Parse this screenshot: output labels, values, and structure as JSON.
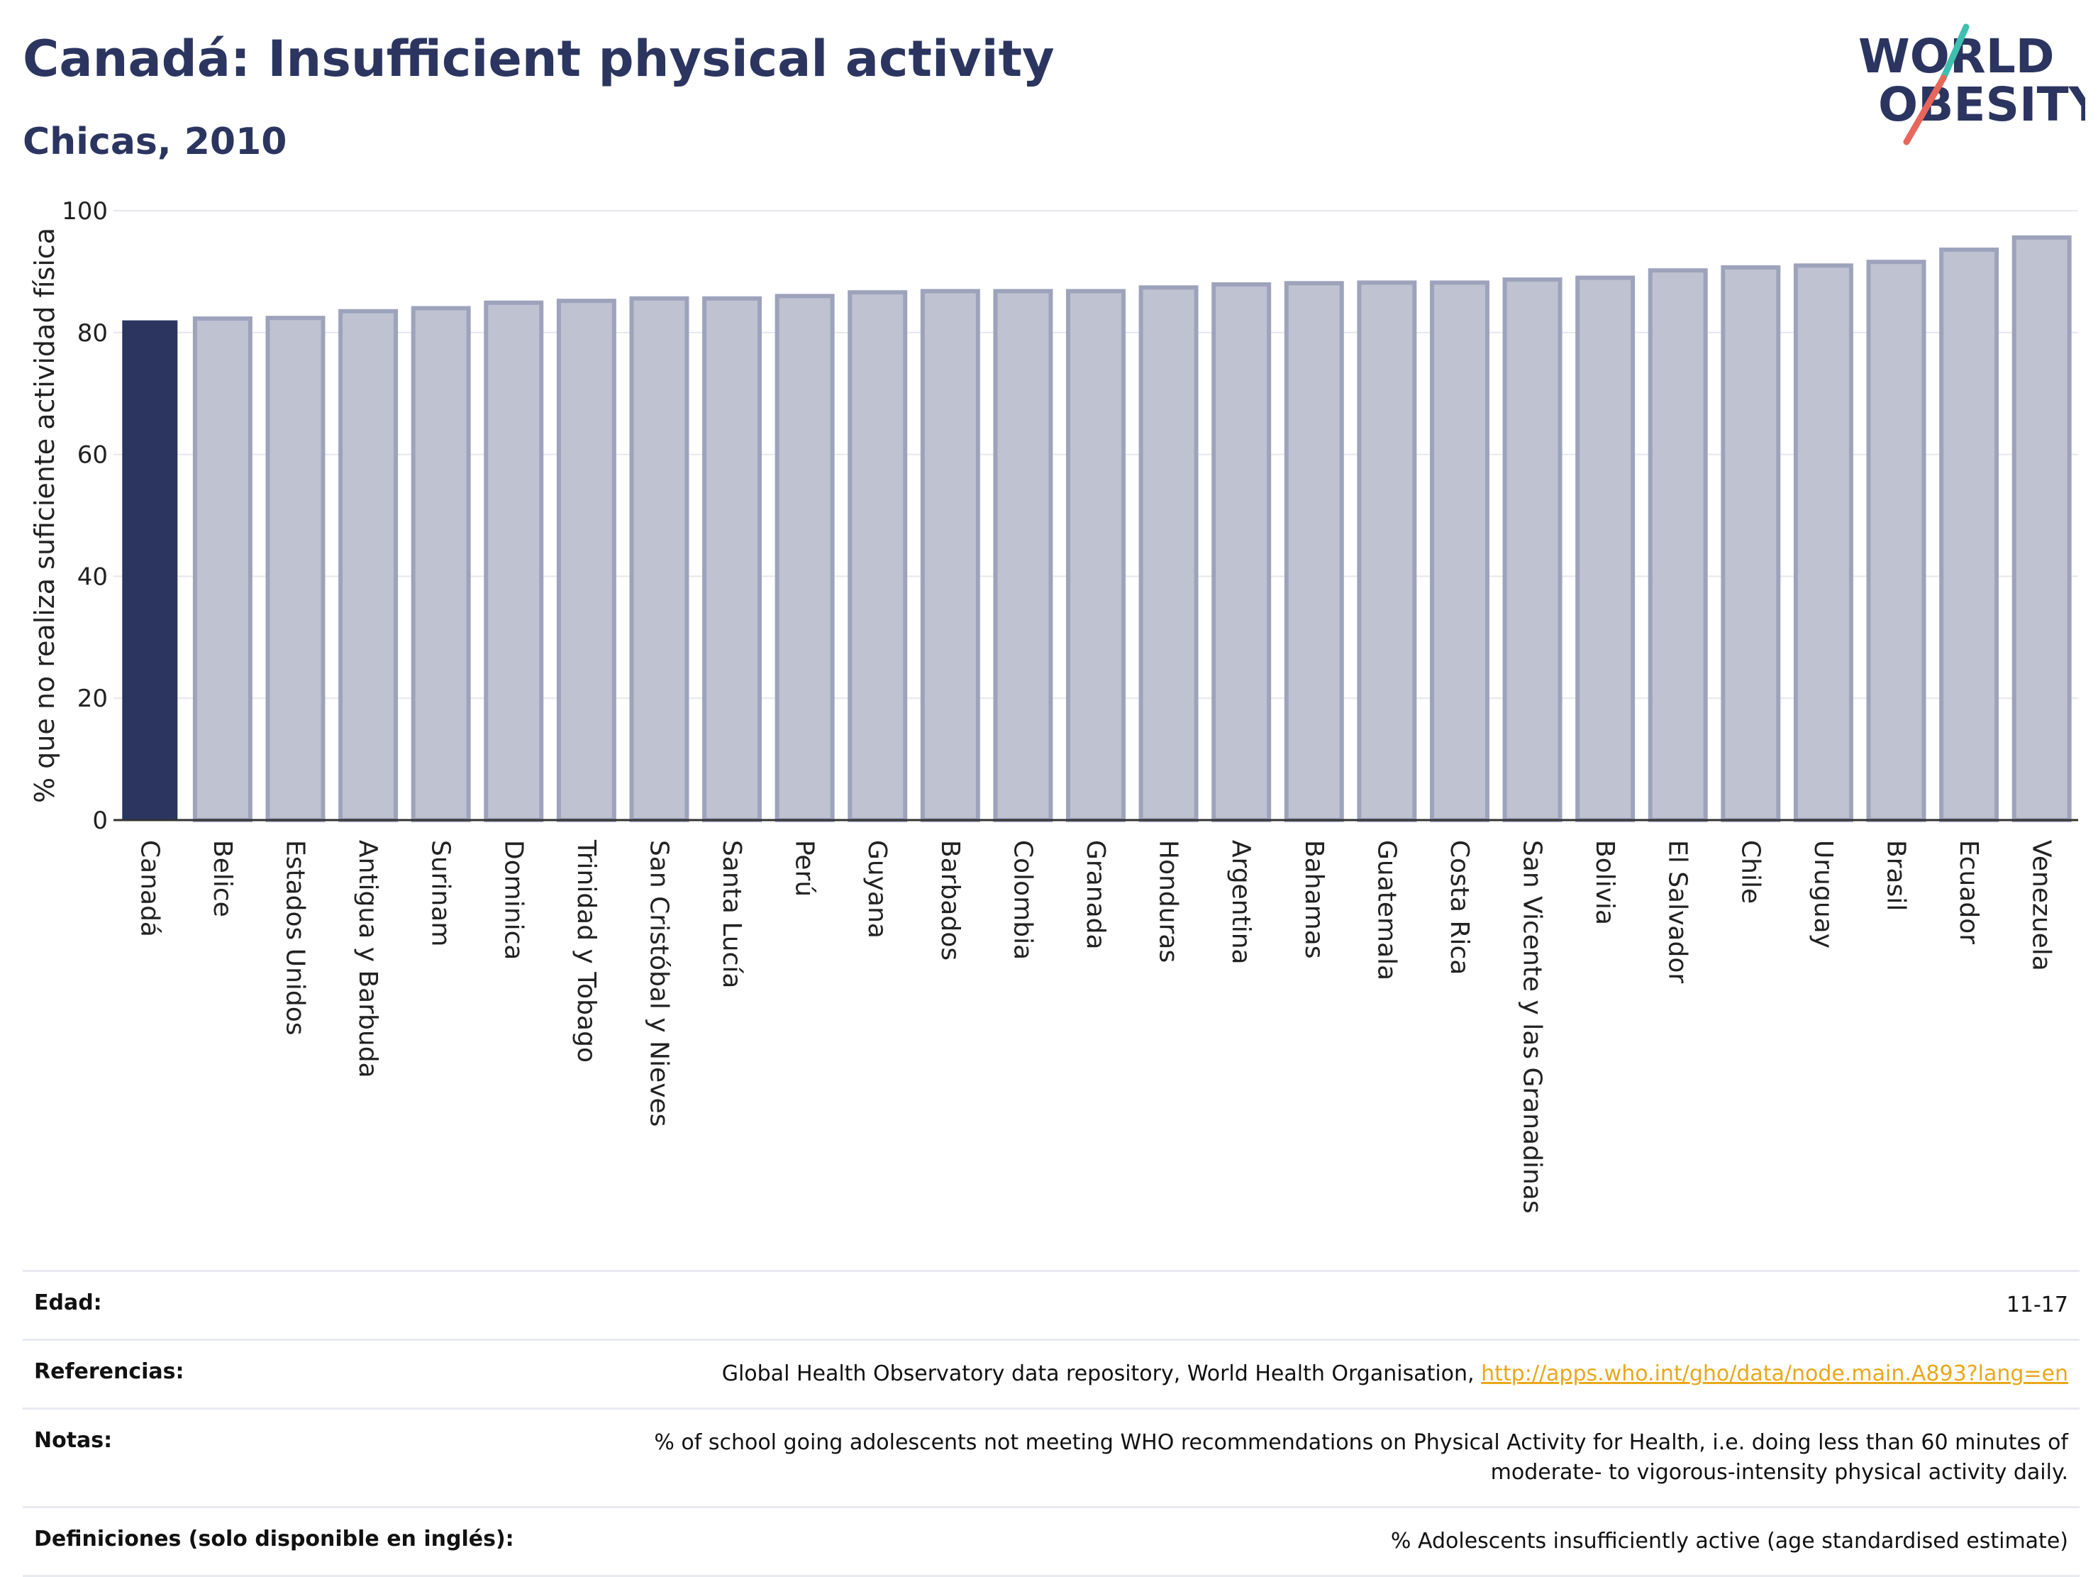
{
  "header": {
    "title": "Canadá: Insufficient physical activity",
    "subtitle": "Chicas, 2010"
  },
  "logo": {
    "line1": "WORLD",
    "line2": "OBESITY",
    "accent_teal": "#3fbfb0",
    "accent_coral": "#e8665a"
  },
  "colors": {
    "highlight_bar": "#2b3560",
    "other_bar_fill": "#bfc2d0",
    "other_bar_stroke": "#9ea3bc",
    "text": "#2b3560"
  },
  "chart_data": {
    "type": "bar",
    "ylabel": "% que no realiza suficiente actividad física",
    "ylim": [
      0,
      100
    ],
    "yticks": [
      0,
      20,
      40,
      60,
      80,
      100
    ],
    "grid": true,
    "highlight": "Canadá",
    "categories": [
      "Canadá",
      "Belice",
      "Estados Unidos",
      "Antigua y Barbuda",
      "Surinam",
      "Dominica",
      "Trinidad y Tobago",
      "San Cristóbal y Nieves",
      "Santa Lucía",
      "Perú",
      "Guyana",
      "Barbados",
      "Colombia",
      "Granada",
      "Honduras",
      "Argentina",
      "Bahamas",
      "Guatemala",
      "Costa Rica",
      "San Vicente y las Granadinas",
      "Bolivia",
      "El Salvador",
      "Chile",
      "Uruguay",
      "Brasil",
      "Ecuador",
      "Venezuela"
    ],
    "values": [
      82.0,
      82.3,
      82.4,
      83.5,
      84.0,
      84.9,
      85.2,
      85.6,
      85.6,
      86.0,
      86.6,
      86.8,
      86.8,
      86.8,
      87.4,
      87.9,
      88.1,
      88.2,
      88.2,
      88.7,
      89.0,
      90.2,
      90.7,
      91.0,
      91.6,
      93.6,
      95.6
    ]
  },
  "info": {
    "rows": [
      {
        "label": "Edad:",
        "value": "11-17"
      },
      {
        "label": "Referencias:",
        "value": "Global Health Observatory data repository, World Health Organisation,",
        "link": "http://apps.who.int/gho/data/node.main.A893?lang=en"
      },
      {
        "label": "Notas:",
        "value": "% of school going adolescents not meeting WHO recommendations on Physical Activity for Health, i.e. doing less than 60 minutes of moderate- to vigorous-intensity physical activity daily."
      },
      {
        "label": "Definiciones (solo disponible en inglés):",
        "value": "% Adolescents insufficiently active (age standardised estimate)"
      }
    ]
  }
}
